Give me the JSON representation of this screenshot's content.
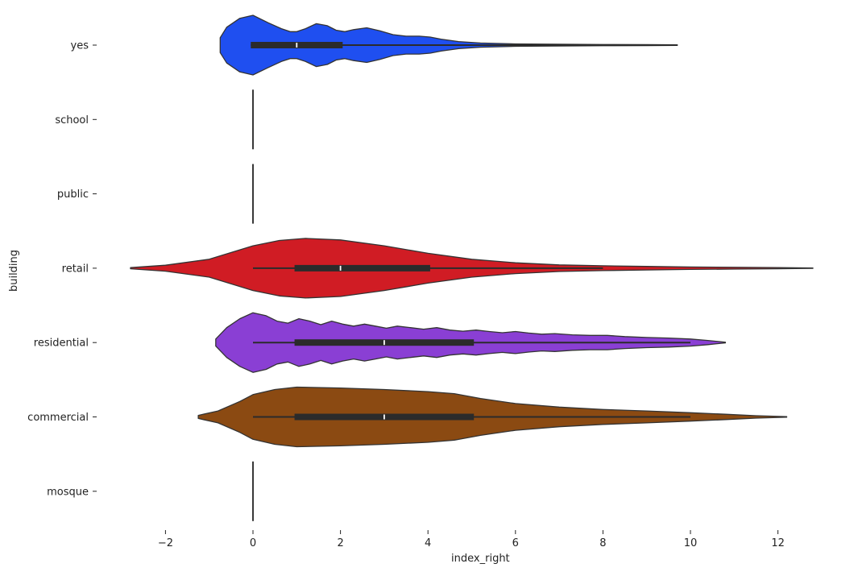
{
  "chart_data": {
    "type": "violin",
    "orientation": "horizontal",
    "xlabel": "index_right",
    "ylabel": "building",
    "categories": [
      "yes",
      "school",
      "public",
      "retail",
      "residential",
      "commercial",
      "mosque"
    ],
    "xlim": [
      -3.0,
      12.8
    ],
    "xticks": [
      -2,
      0,
      2,
      4,
      6,
      8,
      10,
      12
    ],
    "grid": false,
    "legend": "none",
    "violins": [
      {
        "category": "yes",
        "color": "#1f4ff0",
        "box": {
          "min": -0.05,
          "q1": -0.05,
          "median": 1.0,
          "q3": 2.05,
          "max": 9.7
        },
        "density": [
          [
            -0.75,
            0.25
          ],
          [
            -0.6,
            0.6
          ],
          [
            -0.3,
            0.9
          ],
          [
            0.0,
            1.0
          ],
          [
            0.35,
            0.75
          ],
          [
            0.65,
            0.55
          ],
          [
            0.85,
            0.45
          ],
          [
            1.0,
            0.45
          ],
          [
            1.2,
            0.55
          ],
          [
            1.45,
            0.72
          ],
          [
            1.7,
            0.65
          ],
          [
            1.9,
            0.5
          ],
          [
            2.1,
            0.45
          ],
          [
            2.3,
            0.52
          ],
          [
            2.6,
            0.58
          ],
          [
            2.9,
            0.48
          ],
          [
            3.2,
            0.35
          ],
          [
            3.5,
            0.3
          ],
          [
            3.8,
            0.3
          ],
          [
            4.05,
            0.27
          ],
          [
            4.3,
            0.2
          ],
          [
            4.7,
            0.12
          ],
          [
            5.2,
            0.07
          ],
          [
            6.0,
            0.04
          ],
          [
            7.0,
            0.03
          ],
          [
            8.0,
            0.02
          ],
          [
            9.0,
            0.015
          ],
          [
            9.7,
            0.01
          ]
        ]
      },
      {
        "category": "school",
        "color": "#222222",
        "single_value": 0
      },
      {
        "category": "public",
        "color": "#222222",
        "single_value": 0
      },
      {
        "category": "retail",
        "color": "#d01c24",
        "box": {
          "min": 0,
          "q1": 0.95,
          "median": 2.0,
          "q3": 4.05,
          "max": 8.0
        },
        "density": [
          [
            -2.8,
            0.02
          ],
          [
            -2.0,
            0.1
          ],
          [
            -1.0,
            0.3
          ],
          [
            0.0,
            0.75
          ],
          [
            0.6,
            0.93
          ],
          [
            1.2,
            1.0
          ],
          [
            2.0,
            0.95
          ],
          [
            3.0,
            0.75
          ],
          [
            4.0,
            0.5
          ],
          [
            5.0,
            0.3
          ],
          [
            6.0,
            0.18
          ],
          [
            7.0,
            0.11
          ],
          [
            8.0,
            0.08
          ],
          [
            9.0,
            0.06
          ],
          [
            10.0,
            0.04
          ],
          [
            11.0,
            0.03
          ],
          [
            12.0,
            0.02
          ],
          [
            12.8,
            0.005
          ]
        ]
      },
      {
        "category": "residential",
        "color": "#8a3fd4",
        "box": {
          "min": 0,
          "q1": 0.95,
          "median": 3.0,
          "q3": 5.05,
          "max": 10.0
        },
        "density": [
          [
            -0.85,
            0.12
          ],
          [
            -0.6,
            0.5
          ],
          [
            -0.3,
            0.8
          ],
          [
            0.0,
            1.0
          ],
          [
            0.3,
            0.9
          ],
          [
            0.55,
            0.72
          ],
          [
            0.8,
            0.65
          ],
          [
            1.05,
            0.8
          ],
          [
            1.3,
            0.72
          ],
          [
            1.55,
            0.6
          ],
          [
            1.8,
            0.72
          ],
          [
            2.05,
            0.62
          ],
          [
            2.3,
            0.55
          ],
          [
            2.55,
            0.62
          ],
          [
            2.8,
            0.55
          ],
          [
            3.05,
            0.48
          ],
          [
            3.3,
            0.55
          ],
          [
            3.6,
            0.5
          ],
          [
            3.9,
            0.45
          ],
          [
            4.2,
            0.5
          ],
          [
            4.5,
            0.42
          ],
          [
            4.8,
            0.38
          ],
          [
            5.1,
            0.42
          ],
          [
            5.4,
            0.37
          ],
          [
            5.7,
            0.33
          ],
          [
            6.0,
            0.37
          ],
          [
            6.3,
            0.32
          ],
          [
            6.6,
            0.28
          ],
          [
            6.9,
            0.3
          ],
          [
            7.3,
            0.26
          ],
          [
            7.7,
            0.24
          ],
          [
            8.1,
            0.24
          ],
          [
            8.5,
            0.2
          ],
          [
            9.0,
            0.17
          ],
          [
            9.5,
            0.15
          ],
          [
            10.0,
            0.12
          ],
          [
            10.4,
            0.07
          ],
          [
            10.8,
            0.01
          ]
        ]
      },
      {
        "category": "commercial",
        "color": "#8b4a12",
        "box": {
          "min": 0,
          "q1": 0.95,
          "median": 3.0,
          "q3": 5.05,
          "max": 10.0
        },
        "density": [
          [
            -1.25,
            0.05
          ],
          [
            -0.8,
            0.2
          ],
          [
            -0.3,
            0.52
          ],
          [
            0.0,
            0.75
          ],
          [
            0.5,
            0.92
          ],
          [
            1.0,
            1.0
          ],
          [
            2.0,
            0.97
          ],
          [
            3.0,
            0.92
          ],
          [
            4.0,
            0.85
          ],
          [
            4.6,
            0.78
          ],
          [
            5.2,
            0.62
          ],
          [
            6.0,
            0.45
          ],
          [
            7.0,
            0.33
          ],
          [
            8.0,
            0.25
          ],
          [
            9.0,
            0.2
          ],
          [
            10.0,
            0.14
          ],
          [
            10.8,
            0.09
          ],
          [
            11.5,
            0.04
          ],
          [
            12.2,
            0.01
          ]
        ]
      },
      {
        "category": "mosque",
        "color": "#222222",
        "single_value": 0
      }
    ]
  }
}
